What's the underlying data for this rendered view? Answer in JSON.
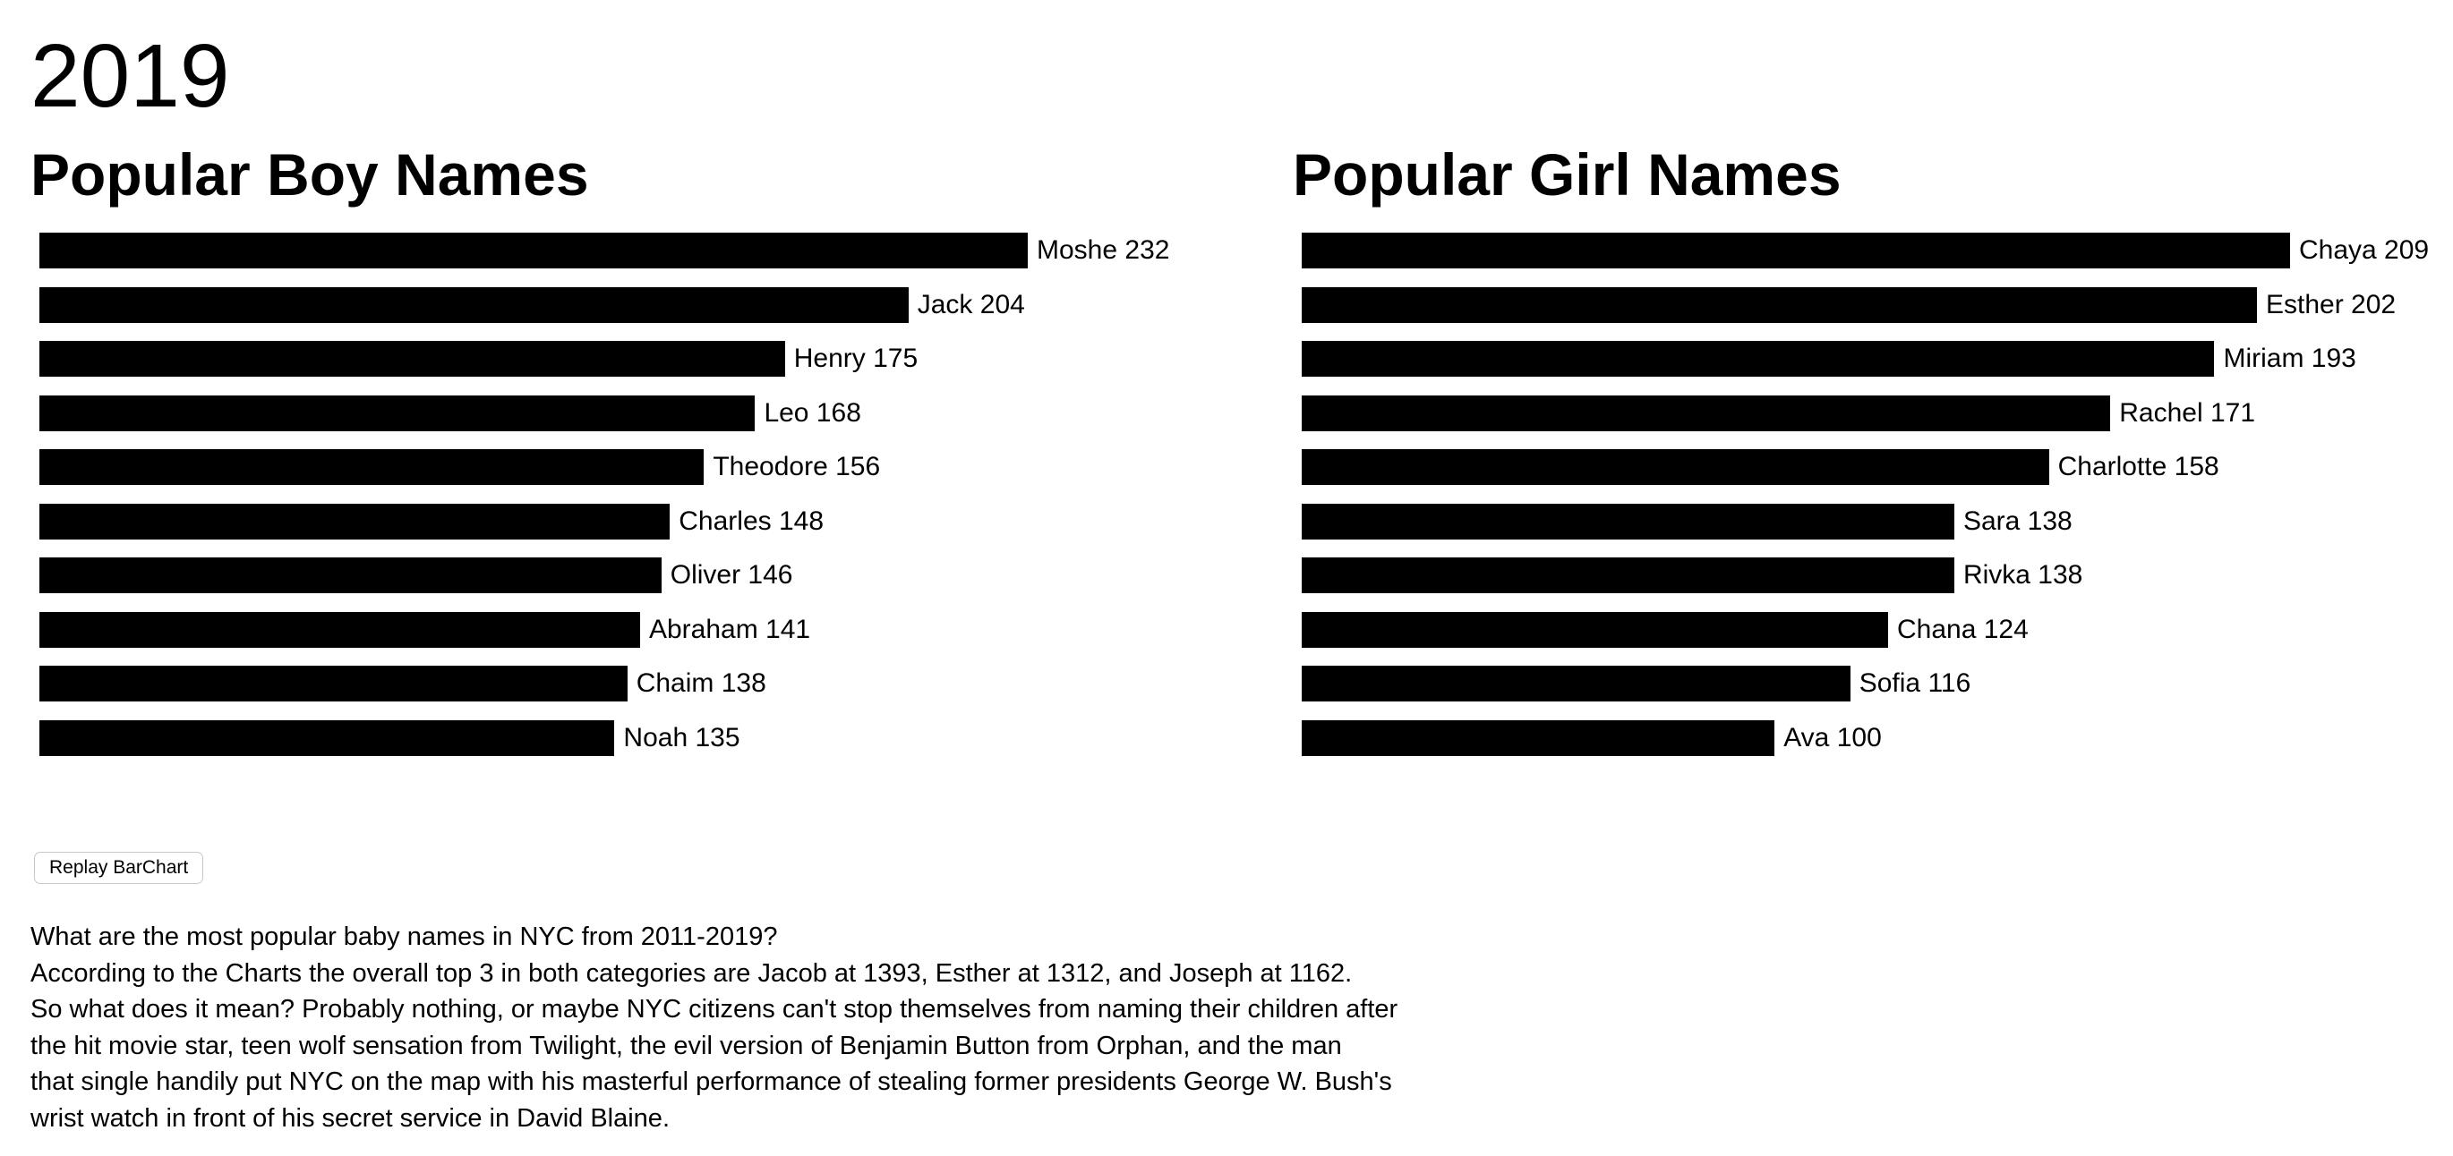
{
  "year_title": "2019",
  "charts": {
    "boys": {
      "title": "Popular Boy Names"
    },
    "girls": {
      "title": "Popular Girl Names"
    }
  },
  "chart_data": [
    {
      "type": "bar",
      "orientation": "horizontal",
      "title": "Popular Boy Names",
      "categories": [
        "Moshe",
        "Jack",
        "Henry",
        "Leo",
        "Theodore",
        "Charles",
        "Oliver",
        "Abraham",
        "Chaim",
        "Noah"
      ],
      "values": [
        232,
        204,
        175,
        168,
        156,
        148,
        146,
        141,
        138,
        135
      ],
      "bar_color": "#000000"
    },
    {
      "type": "bar",
      "orientation": "horizontal",
      "title": "Popular Girl Names",
      "categories": [
        "Chaya",
        "Esther",
        "Miriam",
        "Rachel",
        "Charlotte",
        "Sara",
        "Rivka",
        "Chana",
        "Sofia",
        "Ava"
      ],
      "values": [
        209,
        202,
        193,
        171,
        158,
        138,
        138,
        124,
        116,
        100
      ],
      "bar_color": "#000000"
    }
  ],
  "replay_button": {
    "label": "Replay BarChart"
  },
  "description": {
    "lines": [
      "What are the most popular baby names in NYC from 2011-2019?",
      "According to the Charts the overall top 3 in both categories are Jacob at 1393, Esther at 1312, and Joseph at 1162.",
      "So what does it mean? Probably nothing, or maybe NYC citizens can't stop themselves from naming their children after",
      "the hit movie star, teen wolf sensation from Twilight, the evil version of Benjamin Button from Orphan, and the man",
      "that single handily put NYC on the map with his masterful performance of stealing former presidents George W. Bush's",
      "wrist watch in front of his secret service in David Blaine."
    ]
  }
}
